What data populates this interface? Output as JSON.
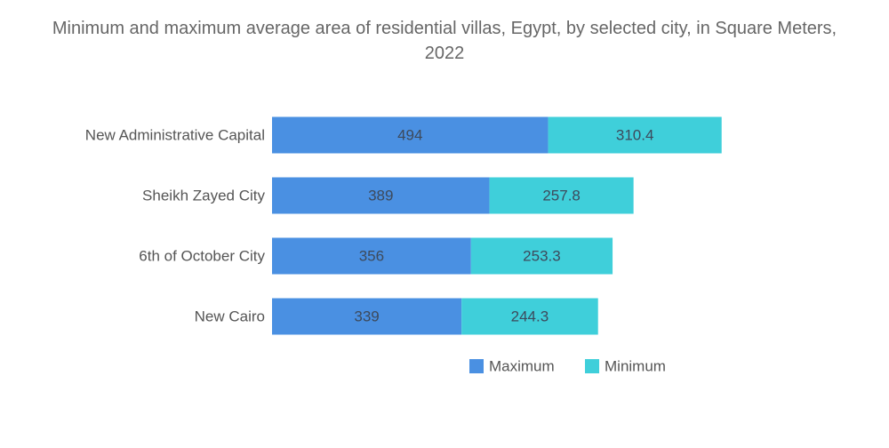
{
  "chart_data": {
    "type": "bar",
    "orientation": "horizontal",
    "stacked": true,
    "title": "Minimum and maximum average area of residential villas, Egypt, by selected city, in Square Meters, 2022",
    "categories": [
      "New Administrative Capital",
      "Sheikh Zayed City",
      "6th of October City",
      "New Cairo"
    ],
    "series": [
      {
        "name": "Maximum",
        "color": "#4a90e2",
        "values": [
          494,
          389,
          356,
          339
        ]
      },
      {
        "name": "Minimum",
        "color": "#3fcfda",
        "values": [
          310.4,
          257.8,
          253.3,
          244.3
        ]
      }
    ],
    "xlabel": "",
    "ylabel": "",
    "xlim": [
      0,
      850
    ],
    "grid": false,
    "legend_position": "bottom"
  }
}
